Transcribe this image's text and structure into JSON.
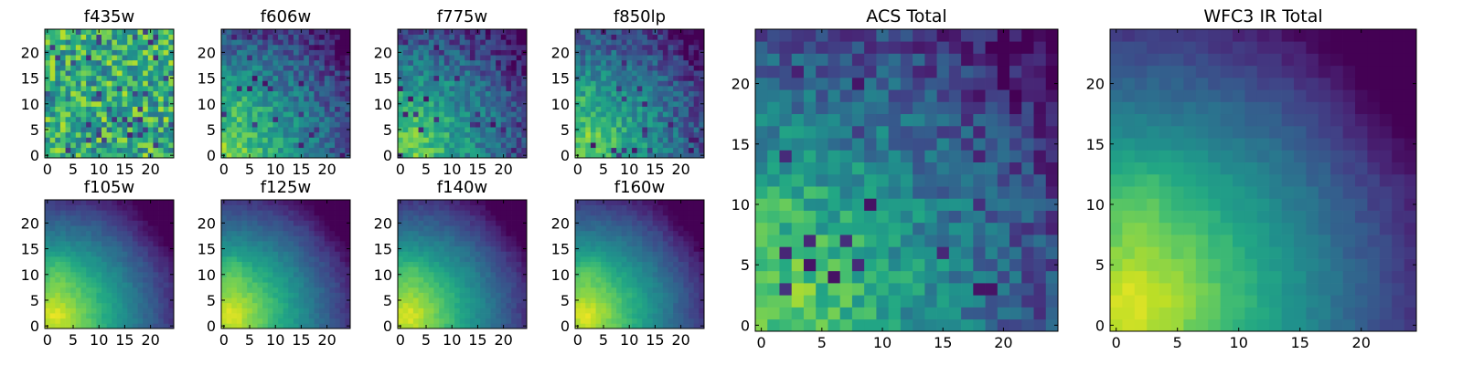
{
  "colormap": "viridis",
  "chart_data": [
    {
      "type": "heatmap",
      "title": "f435w",
      "pattern": "noisy",
      "grid_size": 25,
      "xlim": [
        -0.5,
        24.5
      ],
      "ylim": [
        -0.5,
        24.5
      ],
      "xticks": [
        0,
        5,
        10,
        15,
        20
      ],
      "yticks": [
        0,
        5,
        10,
        15,
        20
      ],
      "xtick_labels": [
        "0",
        "5",
        "10",
        "15",
        "20"
      ],
      "ytick_labels": [
        "0",
        "5",
        "10",
        "15",
        "20"
      ],
      "value_range": [
        0,
        1
      ]
    },
    {
      "type": "heatmap",
      "title": "f606w",
      "pattern": "noisy-gradient",
      "grid_size": 25,
      "xlim": [
        -0.5,
        24.5
      ],
      "ylim": [
        -0.5,
        24.5
      ],
      "xticks": [
        0,
        5,
        10,
        15,
        20
      ],
      "yticks": [
        0,
        5,
        10,
        15,
        20
      ],
      "xtick_labels": [
        "0",
        "5",
        "10",
        "15",
        "20"
      ],
      "ytick_labels": [
        "0",
        "5",
        "10",
        "15",
        "20"
      ],
      "value_range": [
        0,
        1
      ]
    },
    {
      "type": "heatmap",
      "title": "f775w",
      "pattern": "noisy-gradient",
      "grid_size": 25,
      "xlim": [
        -0.5,
        24.5
      ],
      "ylim": [
        -0.5,
        24.5
      ],
      "xticks": [
        0,
        5,
        10,
        15,
        20
      ],
      "yticks": [
        0,
        5,
        10,
        15,
        20
      ],
      "xtick_labels": [
        "0",
        "5",
        "10",
        "15",
        "20"
      ],
      "ytick_labels": [
        "0",
        "5",
        "10",
        "15",
        "20"
      ],
      "value_range": [
        0,
        1
      ]
    },
    {
      "type": "heatmap",
      "title": "f850lp",
      "pattern": "noisy-gradient",
      "grid_size": 25,
      "xlim": [
        -0.5,
        24.5
      ],
      "ylim": [
        -0.5,
        24.5
      ],
      "xticks": [
        0,
        5,
        10,
        15,
        20
      ],
      "yticks": [
        0,
        5,
        10,
        15,
        20
      ],
      "xtick_labels": [
        "0",
        "5",
        "10",
        "15",
        "20"
      ],
      "ytick_labels": [
        "0",
        "5",
        "10",
        "15",
        "20"
      ],
      "value_range": [
        0,
        1
      ]
    },
    {
      "type": "heatmap",
      "title": "f105w",
      "pattern": "smooth-gradient",
      "grid_size": 25,
      "xlim": [
        -0.5,
        24.5
      ],
      "ylim": [
        -0.5,
        24.5
      ],
      "xticks": [
        0,
        5,
        10,
        15,
        20
      ],
      "yticks": [
        0,
        5,
        10,
        15,
        20
      ],
      "xtick_labels": [
        "0",
        "5",
        "10",
        "15",
        "20"
      ],
      "ytick_labels": [
        "0",
        "5",
        "10",
        "15",
        "20"
      ],
      "value_range": [
        0,
        1
      ]
    },
    {
      "type": "heatmap",
      "title": "f125w",
      "pattern": "smooth-gradient",
      "grid_size": 25,
      "xlim": [
        -0.5,
        24.5
      ],
      "ylim": [
        -0.5,
        24.5
      ],
      "xticks": [
        0,
        5,
        10,
        15,
        20
      ],
      "yticks": [
        0,
        5,
        10,
        15,
        20
      ],
      "xtick_labels": [
        "0",
        "5",
        "10",
        "15",
        "20"
      ],
      "ytick_labels": [
        "0",
        "5",
        "10",
        "15",
        "20"
      ],
      "value_range": [
        0,
        1
      ]
    },
    {
      "type": "heatmap",
      "title": "f140w",
      "pattern": "smooth-gradient",
      "grid_size": 25,
      "xlim": [
        -0.5,
        24.5
      ],
      "ylim": [
        -0.5,
        24.5
      ],
      "xticks": [
        0,
        5,
        10,
        15,
        20
      ],
      "yticks": [
        0,
        5,
        10,
        15,
        20
      ],
      "xtick_labels": [
        "0",
        "5",
        "10",
        "15",
        "20"
      ],
      "ytick_labels": [
        "0",
        "5",
        "10",
        "15",
        "20"
      ],
      "value_range": [
        0,
        1
      ]
    },
    {
      "type": "heatmap",
      "title": "f160w",
      "pattern": "smooth-gradient",
      "grid_size": 25,
      "xlim": [
        -0.5,
        24.5
      ],
      "ylim": [
        -0.5,
        24.5
      ],
      "xticks": [
        0,
        5,
        10,
        15,
        20
      ],
      "yticks": [
        0,
        5,
        10,
        15,
        20
      ],
      "xtick_labels": [
        "0",
        "5",
        "10",
        "15",
        "20"
      ],
      "ytick_labels": [
        "0",
        "5",
        "10",
        "15",
        "20"
      ],
      "value_range": [
        0,
        1
      ]
    },
    {
      "type": "heatmap",
      "title": "ACS Total",
      "pattern": "noisy-gradient",
      "grid_size": 25,
      "xlim": [
        -0.5,
        24.5
      ],
      "ylim": [
        -0.5,
        24.5
      ],
      "xticks": [
        0,
        5,
        10,
        15,
        20
      ],
      "yticks": [
        0,
        5,
        10,
        15,
        20
      ],
      "xtick_labels": [
        "0",
        "5",
        "10",
        "15",
        "20"
      ],
      "ytick_labels": [
        "0",
        "5",
        "10",
        "15",
        "20"
      ],
      "value_range": [
        0,
        1
      ]
    },
    {
      "type": "heatmap",
      "title": "WFC3 IR Total",
      "pattern": "smooth-gradient",
      "grid_size": 25,
      "xlim": [
        -0.5,
        24.5
      ],
      "ylim": [
        -0.5,
        24.5
      ],
      "xticks": [
        0,
        5,
        10,
        15,
        20
      ],
      "yticks": [
        0,
        5,
        10,
        15,
        20
      ],
      "xtick_labels": [
        "0",
        "5",
        "10",
        "15",
        "20"
      ],
      "ytick_labels": [
        "0",
        "5",
        "10",
        "15",
        "20"
      ],
      "value_range": [
        0,
        1
      ]
    }
  ]
}
